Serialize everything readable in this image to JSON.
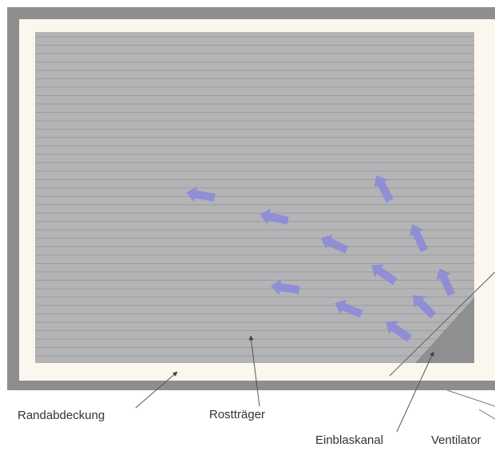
{
  "labels": {
    "randabdeckung": "Randabdeckung",
    "rosttraeger": "Rostträger",
    "einblaskanal": "Einblaskanal",
    "ventilator": "Ventilator"
  },
  "colors": {
    "outer_frame": "#8e8e8e",
    "border_cover": "#fbf6ee",
    "grate": "#b4b4b6",
    "grate_line": "#9c9c9f",
    "duct": "#8f8f91",
    "arrow": "#8c8ad8",
    "leader": "#555555"
  }
}
